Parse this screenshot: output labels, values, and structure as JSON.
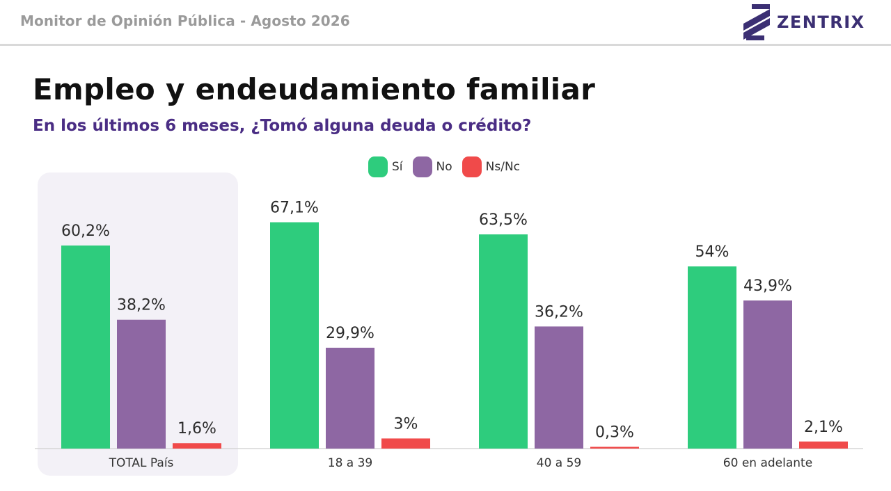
{
  "header": {
    "title": "Monitor de Opinión Pública - Agosto 2026",
    "brand": "ZENTRIX"
  },
  "colors": {
    "si": "#2ecc7d",
    "no": "#8e67a3",
    "nsnc": "#f04a4a",
    "highlight": "#f3f1f7",
    "brand": "#3b2f73",
    "subtitle": "#4a2d84"
  },
  "chart_data": {
    "type": "bar",
    "title": "Empleo y endeudamiento familiar",
    "subtitle": "En los últimos 6 meses, ¿Tomó alguna deuda o crédito?",
    "categories": [
      "TOTAL País",
      "18 a 39",
      "40 a 59",
      "60 en adelante"
    ],
    "highlighted_category": "TOTAL País",
    "series": [
      {
        "name": "Sí",
        "color": "#2ecc7d",
        "values": [
          60.2,
          67.1,
          63.5,
          54
        ],
        "labels": [
          "60,2%",
          "67,1%",
          "63,5%",
          "54%"
        ]
      },
      {
        "name": "No",
        "color": "#8e67a3",
        "values": [
          38.2,
          29.9,
          36.2,
          43.9
        ],
        "labels": [
          "38,2%",
          "29,9%",
          "36,2%",
          "43,9%"
        ]
      },
      {
        "name": "Ns/Nc",
        "color": "#f04a4a",
        "values": [
          1.6,
          3,
          0.3,
          2.1
        ],
        "labels": [
          "1,6%",
          "3%",
          "0,3%",
          "2,1%"
        ]
      }
    ],
    "legend_position": "top-center",
    "ylim": [
      0,
      100
    ],
    "grid": false,
    "xlabel": "",
    "ylabel": ""
  }
}
